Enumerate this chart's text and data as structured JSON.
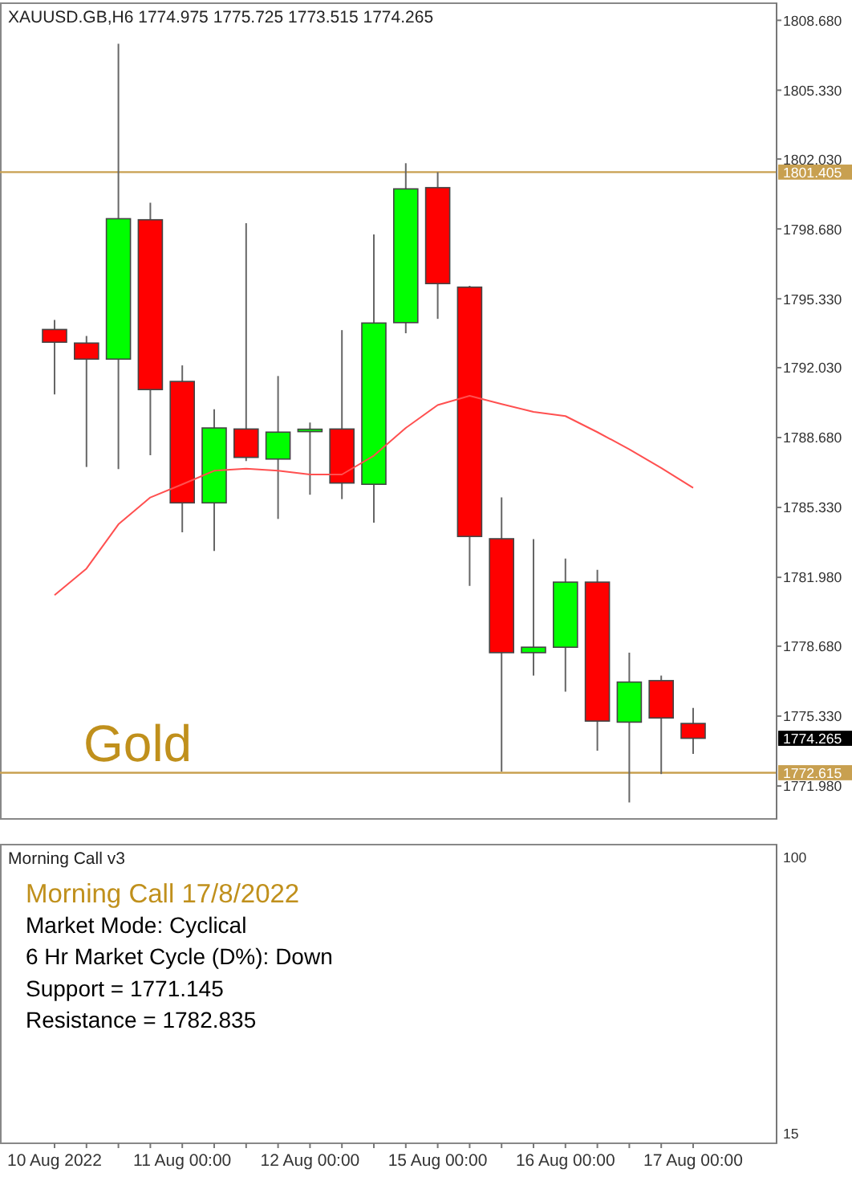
{
  "chart_data": [
    {
      "type": "candlestick",
      "title": "XAUUSD.GB,H6  1774.975 1775.725 1773.515 1774.265",
      "categories": [
        null,
        null,
        null,
        null,
        null,
        null,
        null,
        null,
        null,
        null,
        null,
        null,
        null,
        null,
        null,
        null,
        null,
        null,
        null,
        null,
        null
      ],
      "series": [
        {
          "type": "candlestick",
          "colors": [
            "#ff0000",
            "#ff0000",
            "#00ff00",
            "#ff0000",
            "#ff0000",
            "#00ff00",
            "#ff0000",
            "#00ff00",
            "#00ff00",
            "#ff0000",
            "#00ff00",
            "#00ff00",
            "#ff0000",
            "#ff0000",
            "#ff0000",
            "#00ff00",
            "#00ff00",
            "#ff0000",
            "#00ff00",
            "#ff0000",
            "#ff0000"
          ],
          "ohlc": [
            [
              1793.86,
              1794.32,
              1790.75,
              1793.25
            ],
            [
              1793.21,
              1793.55,
              1787.27,
              1792.44
            ],
            [
              1792.44,
              1807.56,
              1787.17,
              1799.17
            ],
            [
              1799.12,
              1799.94,
              1787.83,
              1790.98
            ],
            [
              1791.37,
              1792.14,
              1784.14,
              1785.55
            ],
            [
              1785.55,
              1790.04,
              1783.24,
              1789.14
            ],
            [
              1789.09,
              1798.96,
              1787.55,
              1787.73
            ],
            [
              1787.65,
              1791.63,
              1784.78,
              1788.94
            ],
            [
              1788.98,
              1789.4,
              1785.94,
              1789.08
            ],
            [
              1789.09,
              1793.83,
              1785.73,
              1786.5
            ],
            [
              1786.44,
              1798.42,
              1784.6,
              1794.17
            ],
            [
              1794.19,
              1801.83,
              1793.68,
              1800.6
            ],
            [
              1800.66,
              1801.4,
              1794.37,
              1796.06
            ],
            [
              1795.89,
              1795.95,
              1781.57,
              1783.94
            ],
            [
              1783.83,
              1785.81,
              1772.67,
              1778.37
            ],
            [
              1778.37,
              1783.81,
              1777.27,
              1778.63
            ],
            [
              1778.63,
              1782.88,
              1776.5,
              1781.75
            ],
            [
              1781.75,
              1782.34,
              1773.67,
              1775.09
            ],
            [
              1775.04,
              1778.37,
              1771.19,
              1776.96
            ],
            [
              1777.03,
              1777.27,
              1772.55,
              1775.24
            ],
            [
              1774.975,
              1775.725,
              1773.515,
              1774.265
            ]
          ]
        },
        {
          "type": "line",
          "color": "#ff5050",
          "values": [
            1781.13,
            1782.4,
            1784.52,
            1785.81,
            1786.44,
            1787.09,
            1787.19,
            1787.09,
            1786.91,
            1786.91,
            1787.81,
            1789.14,
            1790.24,
            1790.68,
            1790.29,
            1789.91,
            1789.71,
            1788.94,
            1788.12,
            1787.22,
            1786.27
          ]
        }
      ],
      "ylim": [
        1770.4,
        1809.5
      ],
      "yticks": [
        {
          "value": 1808.68,
          "label": "1808.680"
        },
        {
          "value": 1805.33,
          "label": "1805.330"
        },
        {
          "value": 1802.03,
          "label": "1802.030"
        },
        {
          "value": 1798.68,
          "label": "1798.680"
        },
        {
          "value": 1795.33,
          "label": "1795.330"
        },
        {
          "value": 1792.03,
          "label": "1792.030"
        },
        {
          "value": 1788.68,
          "label": "1788.680"
        },
        {
          "value": 1785.33,
          "label": "1785.330"
        },
        {
          "value": 1781.98,
          "label": "1781.980"
        },
        {
          "value": 1778.68,
          "label": "1778.680"
        },
        {
          "value": 1775.33,
          "label": "1775.330"
        },
        {
          "value": 1771.98,
          "label": "1771.980"
        }
      ],
      "ref_lines": [
        {
          "axis": "y",
          "value": 1801.405,
          "label": "1801.405",
          "color": "#c8a050"
        },
        {
          "axis": "y",
          "value": 1772.615,
          "label": "1772.615",
          "color": "#c8a050"
        }
      ],
      "annotations": [
        "1774.265",
        "Gold"
      ],
      "tick_labels": "y"
    },
    {
      "type": "other",
      "title": "Morning Call v3",
      "subtitle": "Morning Call 17/8/2022",
      "categories": [
        "10 Aug 2022",
        null,
        null,
        null,
        "11 Aug 00:00",
        null,
        null,
        null,
        "12 Aug 00:00",
        null,
        null,
        null,
        "15 Aug 00:00",
        null,
        null,
        null,
        "16 Aug 00:00",
        null,
        null,
        null,
        "17 Aug 00:00"
      ],
      "annotations": [
        "100",
        "15",
        "Market Mode: Cyclical",
        "6 Hr Market Cycle (D%): Down",
        "Support = 1771.145",
        "Resistance = 1782.835"
      ]
    }
  ]
}
